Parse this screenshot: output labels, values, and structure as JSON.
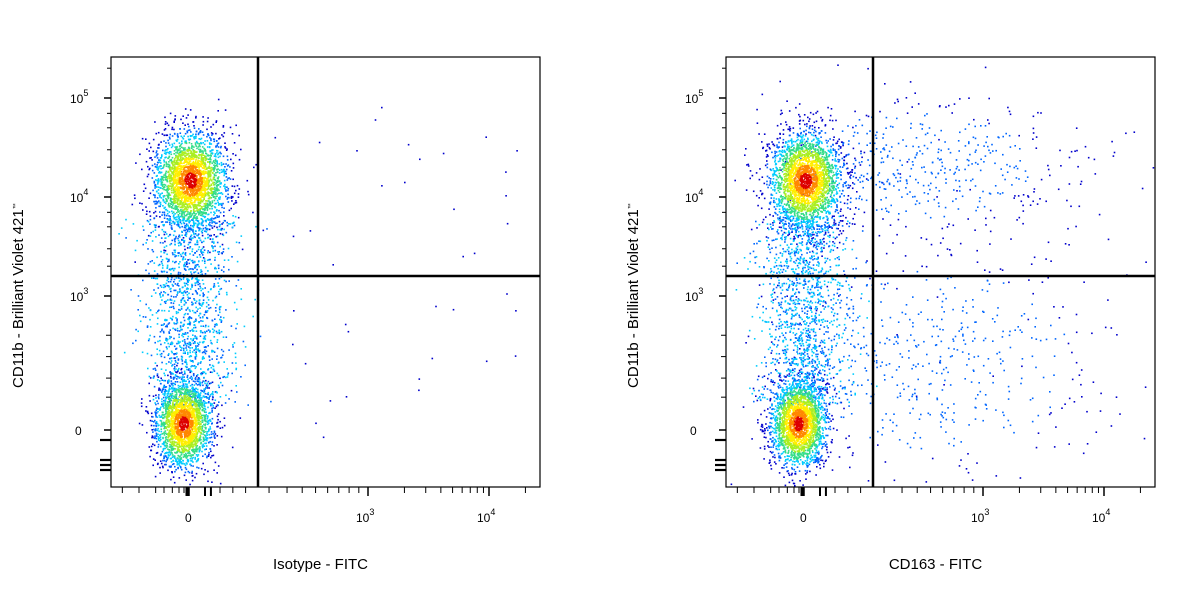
{
  "chart_data": [
    {
      "type": "scatter",
      "subtype": "flow-cytometry-density-dot-plot",
      "title": "",
      "xlabel": "Isotype - FITC",
      "ylabel": "CD11b - Brilliant Violet 421",
      "ylabel_mark": "™",
      "x_scale": "biexponential",
      "y_scale": "biexponential",
      "x_ticks": [
        {
          "value": "0",
          "base": "0",
          "exp": ""
        },
        {
          "value": "1000",
          "base": "10",
          "exp": "3"
        },
        {
          "value": "10000",
          "base": "10",
          "exp": "4"
        }
      ],
      "y_ticks": [
        {
          "value": "0",
          "base": "0",
          "exp": ""
        },
        {
          "value": "1000",
          "base": "10",
          "exp": "3"
        },
        {
          "value": "10000",
          "base": "10",
          "exp": "4"
        },
        {
          "value": "100000",
          "base": "10",
          "exp": "5"
        }
      ],
      "quadrant_gate": {
        "x": 150,
        "y": 1700
      },
      "populations": [
        {
          "name": "CD11b high, FITC negative",
          "x_center": 0,
          "y_center": 14000,
          "relative_density": "high"
        },
        {
          "name": "CD11b low, FITC negative",
          "x_center": 0,
          "y_center": 0,
          "relative_density": "high"
        }
      ],
      "grid": false,
      "legend": "none",
      "color_scale": [
        "#0000cc",
        "#0066ff",
        "#00ccff",
        "#33dd88",
        "#aaee22",
        "#ffee00",
        "#ff8800",
        "#dd0000"
      ]
    },
    {
      "type": "scatter",
      "subtype": "flow-cytometry-density-dot-plot",
      "title": "",
      "xlabel": "CD163 - FITC",
      "ylabel": "CD11b - Brilliant Violet 421",
      "ylabel_mark": "™",
      "x_scale": "biexponential",
      "y_scale": "biexponential",
      "x_ticks": [
        {
          "value": "0",
          "base": "0",
          "exp": ""
        },
        {
          "value": "1000",
          "base": "10",
          "exp": "3"
        },
        {
          "value": "10000",
          "base": "10",
          "exp": "4"
        }
      ],
      "y_ticks": [
        {
          "value": "0",
          "base": "0",
          "exp": ""
        },
        {
          "value": "1000",
          "base": "10",
          "exp": "3"
        },
        {
          "value": "10000",
          "base": "10",
          "exp": "4"
        },
        {
          "value": "100000",
          "base": "10",
          "exp": "5"
        }
      ],
      "quadrant_gate": {
        "x": 150,
        "y": 1700
      },
      "populations": [
        {
          "name": "CD11b high, FITC negative",
          "x_center": 0,
          "y_center": 14000,
          "relative_density": "high"
        },
        {
          "name": "CD11b low, FITC negative",
          "x_center": 0,
          "y_center": 0,
          "relative_density": "high"
        },
        {
          "name": "CD11b high, CD163 positive",
          "x_center": 600,
          "y_center": 12000,
          "relative_density": "low"
        },
        {
          "name": "CD11b low, CD163 positive",
          "x_center": 700,
          "y_center": 300,
          "relative_density": "low"
        }
      ],
      "grid": false,
      "legend": "none",
      "color_scale": [
        "#0000cc",
        "#0066ff",
        "#00ccff",
        "#33dd88",
        "#aaee22",
        "#ffee00",
        "#ff8800",
        "#dd0000"
      ]
    }
  ]
}
